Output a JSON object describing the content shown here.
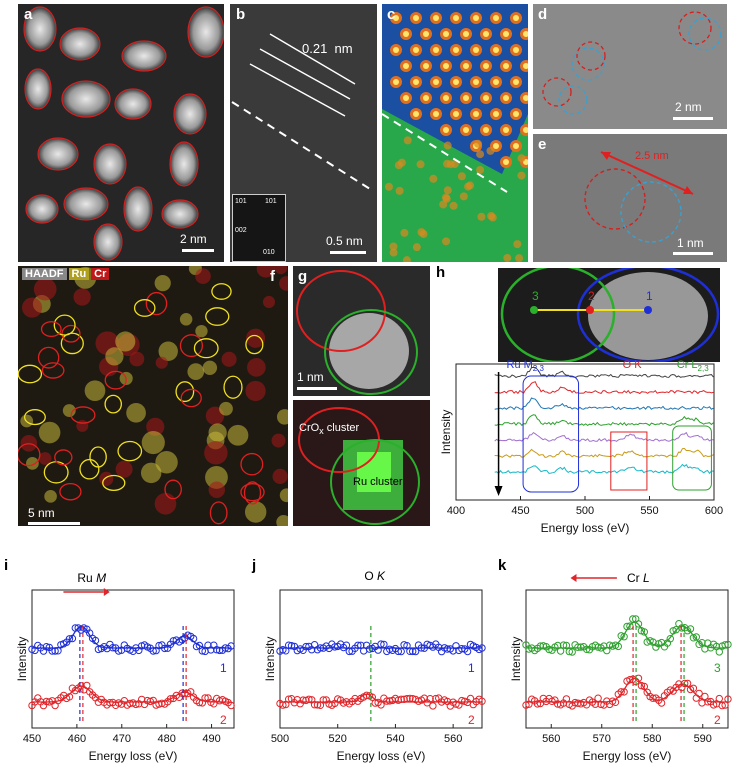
{
  "panels": {
    "a": {
      "label": "a",
      "scale": "2 nm"
    },
    "b": {
      "label": "b",
      "lattice": "0.21  nm",
      "scale": "0.5 nm",
      "fft_labels": [
        "101",
        "101",
        "002",
        "010"
      ]
    },
    "c": {
      "label": "c"
    },
    "d": {
      "label": "d",
      "scale": "2 nm"
    },
    "e": {
      "label": "e",
      "annotation": "2.5 nm",
      "scale": "1 nm"
    },
    "f": {
      "label": "f",
      "legend": [
        "HAADF",
        "Ru",
        "Cr"
      ],
      "scale": "5 nm"
    },
    "g": {
      "label": "g",
      "scale": "1 nm",
      "crox": "CrO",
      "crox_sub": "x",
      "crox_tail": " cluster",
      "ru": "Ru cluster"
    },
    "h": {
      "label": "h",
      "points": [
        "3",
        "2",
        "1"
      ]
    },
    "i": {
      "label": "i"
    },
    "j": {
      "label": "j"
    },
    "k": {
      "label": "k"
    }
  },
  "colors": {
    "blue": "#1f2fd6",
    "red": "#e0262b",
    "green": "#2ea02e"
  },
  "chart_data": [
    {
      "id": "h",
      "type": "line",
      "xlabel": "Energy loss (eV)",
      "ylabel": "Intensity",
      "xlim": [
        400,
        600
      ],
      "xticks": [
        400,
        450,
        500,
        550,
        600
      ],
      "edges": [
        {
          "text": "Ru M",
          "sub": "2,3",
          "x": 450,
          "color": "#1f2fd6"
        },
        {
          "text": "O K",
          "sub": "",
          "x": 540,
          "color": "#e0262b"
        },
        {
          "text": "Cr L",
          "sub": "2,3",
          "x": 582,
          "color": "#2ea02e"
        }
      ],
      "series_colors": [
        "#444444",
        "#e0262b",
        "#1f77b4",
        "#2ca02c",
        "#a070d0",
        "#c89a1a",
        "#17b8c8"
      ]
    },
    {
      "id": "i",
      "type": "scatter",
      "xlabel": "Energy loss (eV)",
      "ylabel": "Intensity",
      "xlim": [
        450,
        495
      ],
      "xticks": [
        450,
        460,
        470,
        480,
        490
      ],
      "title": "Ru M",
      "series": [
        {
          "name": "1",
          "color": "#1f2fd6"
        },
        {
          "name": "2",
          "color": "#e0262b"
        }
      ],
      "markers": [
        461,
        484
      ]
    },
    {
      "id": "j",
      "type": "scatter",
      "xlabel": "Energy loss (eV)",
      "ylabel": "Intensity",
      "xlim": [
        500,
        570
      ],
      "xticks": [
        500,
        520,
        540,
        560
      ],
      "title": "O K",
      "series": [
        {
          "name": "1",
          "color": "#1f2fd6"
        },
        {
          "name": "2",
          "color": "#e0262b"
        }
      ],
      "markers": [
        532
      ]
    },
    {
      "id": "k",
      "type": "scatter",
      "xlabel": "Energy loss (eV)",
      "ylabel": "Intensity",
      "xlim": [
        555,
        595
      ],
      "xticks": [
        560,
        570,
        580,
        590
      ],
      "title": "Cr L",
      "series": [
        {
          "name": "3",
          "color": "#2ea02e"
        },
        {
          "name": "2",
          "color": "#e0262b"
        }
      ],
      "markers": [
        576.5,
        586
      ]
    }
  ]
}
